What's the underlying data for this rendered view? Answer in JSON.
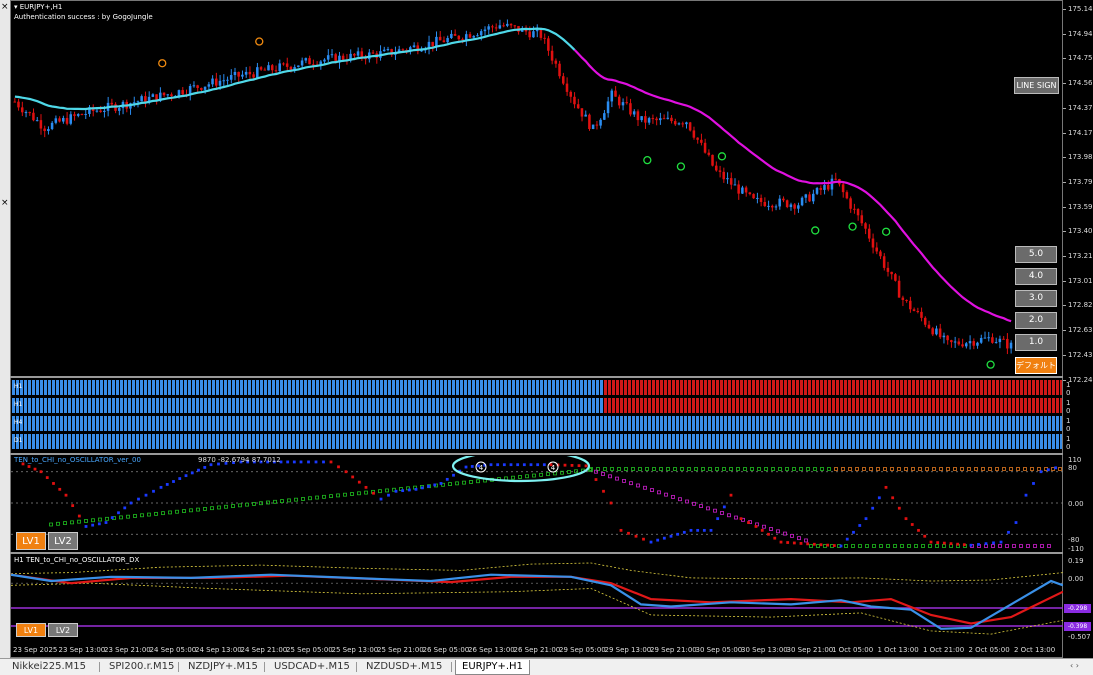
{
  "header": {
    "symbol": "EURJPY+,H1",
    "auth": "Authentication success : by GogoJungle"
  },
  "yaxis": [
    "175.140",
    "174.945",
    "174.755",
    "174.560",
    "174.370",
    "174.175",
    "173.980",
    "173.790",
    "173.595",
    "173.400",
    "173.210",
    "173.015",
    "172.825",
    "172.630",
    "172.435",
    "172.245"
  ],
  "buttons": {
    "line_sign": "LINE SIGN",
    "levels": [
      "5.0",
      "4.0",
      "3.0",
      "2.0",
      "1.0"
    ],
    "default": "デフォルト"
  },
  "trend": {
    "rows": [
      "H1",
      "H1",
      "H4",
      "D1"
    ],
    "values": [
      [
        "1",
        "0"
      ],
      [
        "1",
        "0"
      ],
      [
        "1",
        "0"
      ],
      [
        "1",
        "0"
      ]
    ]
  },
  "osc1": {
    "title": "TEN_to_CHI_no_OSCILLATOR_ver_00",
    "values": "9870 -82.6794 87.7012",
    "axis": [
      "110",
      "80",
      "0.00",
      "-80",
      "-110"
    ],
    "markers": [
      "4",
      "4"
    ],
    "lv1": "LV1",
    "lv2": "LV2"
  },
  "osc2": {
    "title": "H1 TEN_to_CHI_no_OSCILLATOR_DX",
    "axis": [
      "0.19",
      "0.00",
      "-0.507"
    ],
    "tags": [
      "-0.298",
      "-0.398"
    ],
    "lv1": "LV1",
    "lv2": "LV2"
  },
  "xaxis": [
    "23 Sep 2025",
    "23 Sep 13:00",
    "23 Sep 21:00",
    "24 Sep 05:00",
    "24 Sep 13:00",
    "24 Sep 21:00",
    "25 Sep 05:00",
    "25 Sep 13:00",
    "25 Sep 21:00",
    "26 Sep 05:00",
    "26 Sep 13:00",
    "26 Sep 21:00",
    "29 Sep 05:00",
    "29 Sep 13:00",
    "29 Sep 21:00",
    "30 Sep 05:00",
    "30 Sep 13:00",
    "30 Sep 21:00",
    "1 Oct 05:00",
    "1 Oct 13:00",
    "1 Oct 21:00",
    "2 Oct 05:00",
    "2 Oct 13:00"
  ],
  "tabs": [
    "Nikkei225.M15",
    "SPI200.r.M15",
    "NZDJPY+.M15",
    "USDCAD+.M15",
    "NZDUSD+.M15",
    "EURJPY+.H1"
  ],
  "active_tab": 5,
  "colors": {
    "bull": "#2a8cf0",
    "bear": "#e01010",
    "ma_up": "#4fd8e8",
    "ma_down": "#e010e0",
    "accent": "#f08010"
  }
}
